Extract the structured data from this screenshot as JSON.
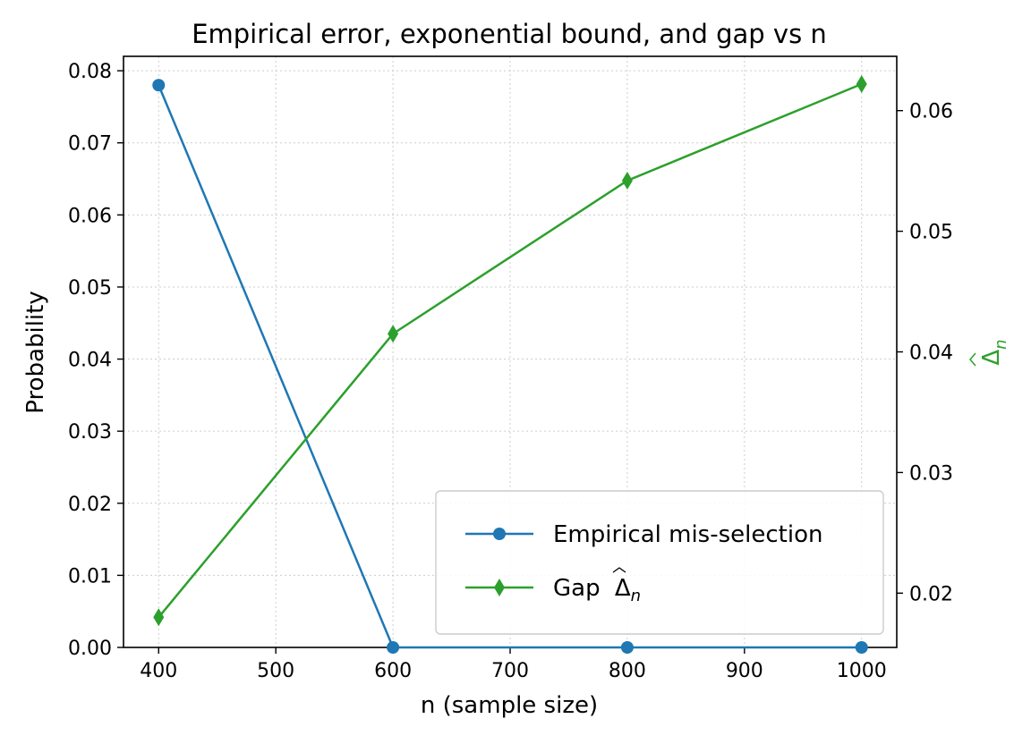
{
  "chart_data": {
    "type": "line",
    "title": "Empirical error, exponential bound, and gap vs n",
    "xlabel": "n (sample size)",
    "ylabel": "Probability",
    "y2label": "Δn (hat)",
    "x": [
      400,
      600,
      800,
      1000
    ],
    "xlim": [
      370,
      1030
    ],
    "ylim": [
      0,
      0.082
    ],
    "y2lim": [
      0.0155,
      0.0645
    ],
    "xticks": [
      "400",
      "500",
      "600",
      "700",
      "800",
      "900",
      "1000"
    ],
    "yticks": [
      "0.00",
      "0.01",
      "0.02",
      "0.03",
      "0.04",
      "0.05",
      "0.06",
      "0.07",
      "0.08"
    ],
    "y2ticks": [
      "0.02",
      "0.03",
      "0.04",
      "0.05",
      "0.06"
    ],
    "grid": true,
    "legend_position": "lower-right",
    "series": [
      {
        "name": "Empirical mis-selection",
        "axis": "left",
        "marker": "circle",
        "color": "#1f77b4",
        "values": [
          0.078,
          0.0,
          0.0,
          0.0
        ]
      },
      {
        "name": "Gap",
        "legend_math": "Δn",
        "axis": "right",
        "marker": "diamond",
        "color": "#2ca02c",
        "values": [
          0.018,
          0.0415,
          0.0542,
          0.0622
        ]
      }
    ]
  }
}
